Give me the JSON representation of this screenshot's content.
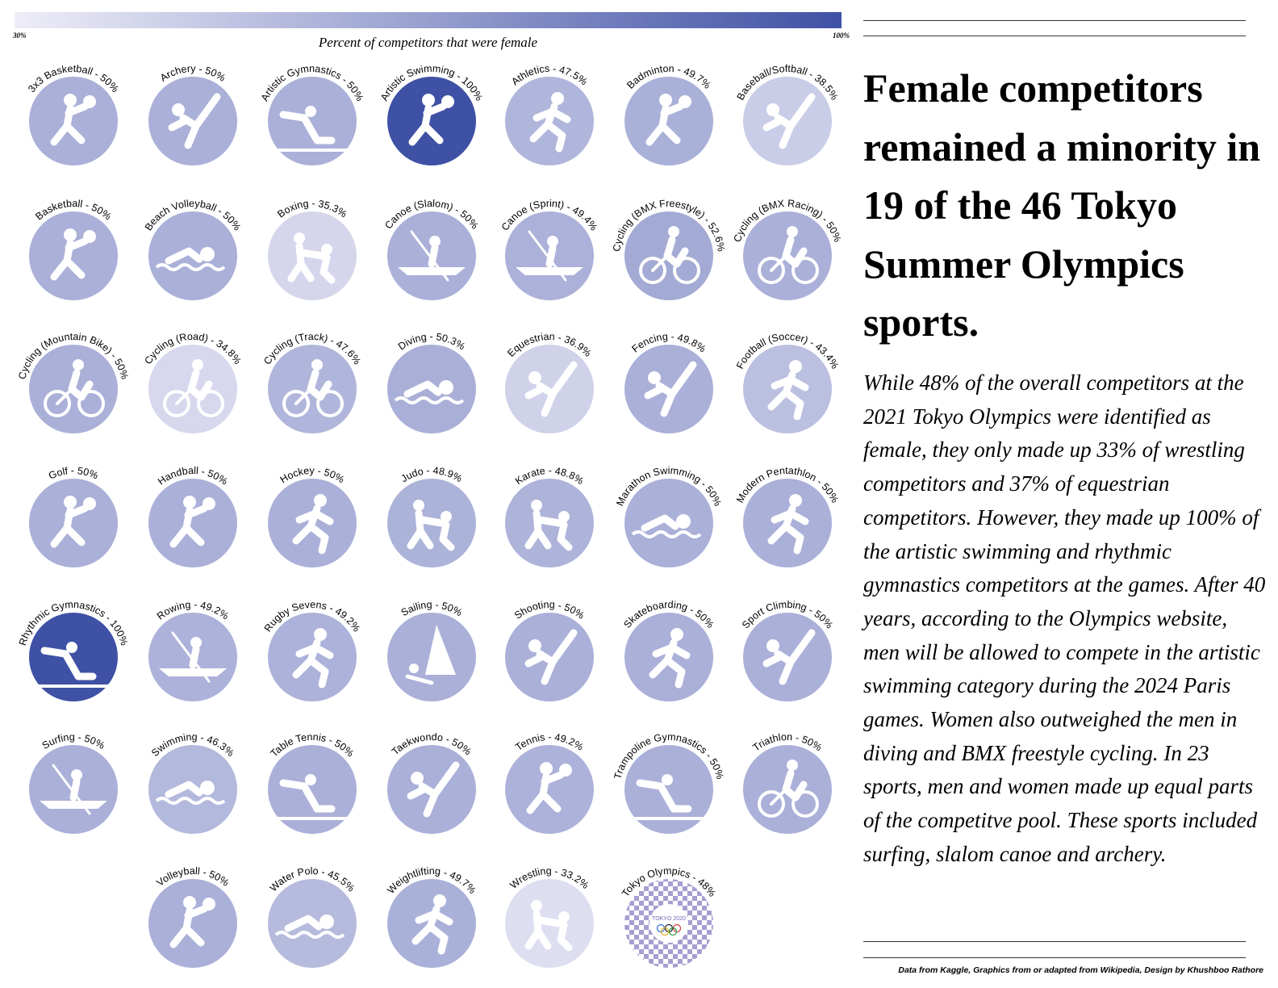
{
  "chart_data": {
    "type": "other",
    "title": "",
    "scale": {
      "min": 30,
      "max": 100,
      "min_label": "30%",
      "max_label": "100%",
      "title": "Percent of competitors that were female"
    },
    "colors": {
      "light": "#e6e4f3",
      "dark": "#3f51a5"
    },
    "sports": [
      {
        "name": "3x3 Basketball",
        "value": 50,
        "label": "3x3 Basketball - 50%",
        "icon": "basketball-3x3-icon"
      },
      {
        "name": "Archery",
        "value": 50,
        "label": "Archery - 50%",
        "icon": "archery-icon"
      },
      {
        "name": "Artistic Gymnastics",
        "value": 50,
        "label": "Artistic Gymnastics - 50%",
        "icon": "artistic-gymnastics-icon"
      },
      {
        "name": "Artistic Swimming",
        "value": 100,
        "label": "Artistic Swimming - 100%",
        "icon": "artistic-swimming-icon"
      },
      {
        "name": "Athletics",
        "value": 47.5,
        "label": "Athletics - 47.5%",
        "icon": "athletics-icon"
      },
      {
        "name": "Badminton",
        "value": 49.7,
        "label": "Badminton - 49.7%",
        "icon": "badminton-icon"
      },
      {
        "name": "Baseball/Softball",
        "value": 38.5,
        "label": "Baseball/Softball - 38.5%",
        "icon": "baseball-icon"
      },
      {
        "name": "Basketball",
        "value": 50,
        "label": "Basketball - 50%",
        "icon": "basketball-icon"
      },
      {
        "name": "Beach Volleyball",
        "value": 50,
        "label": "Beach Volleyball - 50%",
        "icon": "beach-volleyball-icon"
      },
      {
        "name": "Boxing",
        "value": 35.3,
        "label": "Boxing - 35.3%",
        "icon": "boxing-icon"
      },
      {
        "name": "Canoe (Slalom)",
        "value": 50,
        "label": "Canoe (Slalom) - 50%",
        "icon": "canoe-slalom-icon"
      },
      {
        "name": "Canoe (Sprint)",
        "value": 49.4,
        "label": "Canoe (Sprint) - 49.4%",
        "icon": "canoe-sprint-icon"
      },
      {
        "name": "Cycling (BMX Freestyle)",
        "value": 52.6,
        "label": "Cycling (BMX Freestyle) - 52.6%",
        "icon": "bmx-freestyle-icon"
      },
      {
        "name": "Cycling (BMX Racing)",
        "value": 50,
        "label": "Cycling (BMX Racing) - 50%",
        "icon": "bmx-racing-icon"
      },
      {
        "name": "Cycling (Mountain Bike)",
        "value": 50,
        "label": "Cycling (Mountain Bike) - 50%",
        "icon": "mountain-bike-icon"
      },
      {
        "name": "Cycling (Road)",
        "value": 34.8,
        "label": "Cycling (Road) - 34.8%",
        "icon": "road-cycling-icon"
      },
      {
        "name": "Cycling (Track)",
        "value": 47.6,
        "label": "Cycling (Track) - 47.6%",
        "icon": "track-cycling-icon"
      },
      {
        "name": "Diving",
        "value": 50.3,
        "label": "Diving - 50.3%",
        "icon": "diving-icon"
      },
      {
        "name": "Equestrian",
        "value": 36.9,
        "label": "Equestrian - 36.9%",
        "icon": "equestrian-icon"
      },
      {
        "name": "Fencing",
        "value": 49.8,
        "label": "Fencing - 49.8%",
        "icon": "fencing-icon"
      },
      {
        "name": "Football (Soccer)",
        "value": 43.4,
        "label": "Football (Soccer) - 43.4%",
        "icon": "football-icon"
      },
      {
        "name": "Golf",
        "value": 50,
        "label": "Golf - 50%",
        "icon": "golf-icon"
      },
      {
        "name": "Handball",
        "value": 50,
        "label": "Handball - 50%",
        "icon": "handball-icon"
      },
      {
        "name": "Hockey",
        "value": 50,
        "label": "Hockey - 50%",
        "icon": "hockey-icon"
      },
      {
        "name": "Judo",
        "value": 48.9,
        "label": "Judo - 48.9%",
        "icon": "judo-icon"
      },
      {
        "name": "Karate",
        "value": 48.8,
        "label": "Karate - 48.8%",
        "icon": "karate-icon"
      },
      {
        "name": "Marathon Swimming",
        "value": 50,
        "label": "Marathon Swimming - 50%",
        "icon": "marathon-swimming-icon"
      },
      {
        "name": "Modern Pentathlon",
        "value": 50,
        "label": "Modern Pentathlon - 50%",
        "icon": "modern-pentathlon-icon"
      },
      {
        "name": "Rhythmic Gymnastics",
        "value": 100,
        "label": "Rhythmic Gymnastics - 100%",
        "icon": "rhythmic-gymnastics-icon"
      },
      {
        "name": "Rowing",
        "value": 49.2,
        "label": "Rowing - 49.2%",
        "icon": "rowing-icon"
      },
      {
        "name": "Rugby Sevens",
        "value": 49.2,
        "label": "Rugby Sevens - 49.2%",
        "icon": "rugby-icon"
      },
      {
        "name": "Sailing",
        "value": 50,
        "label": "Sailing - 50%",
        "icon": "sailing-icon"
      },
      {
        "name": "Shooting",
        "value": 50,
        "label": "Shooting - 50%",
        "icon": "shooting-icon"
      },
      {
        "name": "Skateboarding",
        "value": 50,
        "label": "Skateboarding - 50%",
        "icon": "skateboarding-icon"
      },
      {
        "name": "Sport Climbing",
        "value": 50,
        "label": "Sport Climbing - 50%",
        "icon": "sport-climbing-icon"
      },
      {
        "name": "Surfing",
        "value": 50,
        "label": "Surfing - 50%",
        "icon": "surfing-icon"
      },
      {
        "name": "Swimming",
        "value": 46.3,
        "label": "Swimming - 46.3%",
        "icon": "swimming-icon"
      },
      {
        "name": "Table Tennis",
        "value": 50,
        "label": "Table Tennis - 50%",
        "icon": "table-tennis-icon"
      },
      {
        "name": "Taekwondo",
        "value": 50,
        "label": "Taekwondo - 50%",
        "icon": "taekwondo-icon"
      },
      {
        "name": "Tennis",
        "value": 49.2,
        "label": "Tennis - 49.2%",
        "icon": "tennis-icon"
      },
      {
        "name": "Trampoline Gymnastics",
        "value": 50,
        "label": "Trampoline Gymnastics - 50%",
        "icon": "trampoline-icon"
      },
      {
        "name": "Triathlon",
        "value": 50,
        "label": "Triathlon - 50%",
        "icon": "triathlon-icon"
      },
      {
        "name": "Volleyball",
        "value": 50,
        "label": "Volleyball - 50%",
        "icon": "volleyball-icon"
      },
      {
        "name": "Water Polo",
        "value": 45.5,
        "label": "Water Polo - 45.5%",
        "icon": "water-polo-icon"
      },
      {
        "name": "Weightlifting",
        "value": 49.7,
        "label": "Weightlifting - 49.7%",
        "icon": "weightlifting-icon"
      },
      {
        "name": "Wrestling",
        "value": 33.2,
        "label": "Wrestling - 33.2%",
        "icon": "wrestling-icon"
      },
      {
        "name": "Tokyo Olympics",
        "value": 48,
        "label": "Tokyo Olympics - 48%",
        "icon": "tokyo-2020-emblem-icon"
      }
    ]
  },
  "logo_text": "TOKYO 2020",
  "headline": "Female competitors remained a minority in 19 of the 46 Tokyo Summer Olympics sports.",
  "body": "While 48% of the overall competitors at the 2021 Tokyo Olympics were identified as female, they only made up 33% of wrestling competitors and 37% of equestrian competitors. However, they made up 100% of the artistic swimming and rhythmic gymnastics competitors at the games. After 40 years, according to the Olympics website, men will be allowed to compete in the  artistic swimming category during the 2024 Paris games. Women also outweighed the men in diving and BMX freestyle cycling. In 23 sports, men and women made up equal parts of the competitve pool. These sports included surfing, slalom canoe and archery.",
  "credit": "Data from Kaggle, Graphics from or adapted from Wikipedia, Design by Khushboo Rathore"
}
